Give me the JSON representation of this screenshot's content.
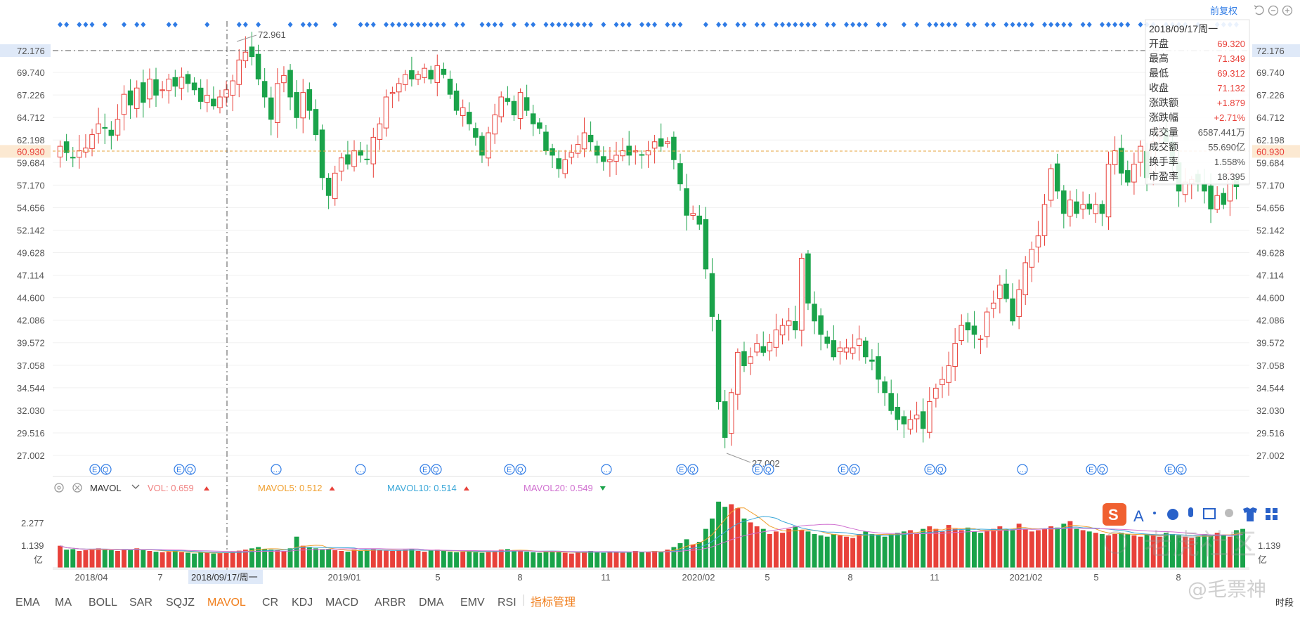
{
  "toolbar": {
    "fq_label": "前复权"
  },
  "colors": {
    "up": "#e8413a",
    "down": "#1aa34a",
    "grid": "#eeeeee",
    "accent": "#2f7be5",
    "price_line": "#e5a33d"
  },
  "icons": [
    "undo-icon",
    "zoom-out-icon",
    "zoom-in-icon",
    "settings-icon",
    "close-icon",
    "chevron-down-icon"
  ],
  "price_axis": {
    "ticks": [
      "72.176",
      "69.740",
      "67.226",
      "64.712",
      "62.198",
      "59.684",
      "57.170",
      "54.656",
      "52.142",
      "49.628",
      "47.114",
      "44.600",
      "42.086",
      "39.572",
      "37.058",
      "34.544",
      "32.030",
      "29.516",
      "27.002"
    ],
    "highlight_top": "72.176",
    "highlight_current": "60.930"
  },
  "annotations": {
    "high_label": "72.961",
    "low_label": "27.002"
  },
  "tooltip": {
    "date": "2018/09/17周一",
    "rows": [
      {
        "k": "开盘",
        "v": "69.320",
        "color": "#e8413a"
      },
      {
        "k": "最高",
        "v": "71.349",
        "color": "#e8413a"
      },
      {
        "k": "最低",
        "v": "69.312",
        "color": "#e8413a"
      },
      {
        "k": "收盘",
        "v": "71.132",
        "color": "#e8413a"
      },
      {
        "k": "涨跌额",
        "v": "+1.879",
        "color": "#e8413a"
      },
      {
        "k": "涨跌幅",
        "v": "+2.71%",
        "color": "#e8413a"
      },
      {
        "k": "成交量",
        "v": "6587.441万",
        "color": "#555555"
      },
      {
        "k": "成交额",
        "v": "55.690亿",
        "color": "#555555"
      },
      {
        "k": "换手率",
        "v": "1.558%",
        "color": "#555555"
      },
      {
        "k": "市盈率",
        "v": "18.395",
        "color": "#555555"
      }
    ]
  },
  "volume_panel": {
    "indicator_name": "MAVOL",
    "legend": [
      {
        "label": "VOL: 0.659",
        "color": "#f08080",
        "dir": "up"
      },
      {
        "label": "MAVOL5: 0.512",
        "color": "#f0a030",
        "dir": "up"
      },
      {
        "label": "MAVOL10: 0.514",
        "color": "#3aa7d8",
        "dir": "up"
      },
      {
        "label": "MAVOL20: 0.549",
        "color": "#d070d0",
        "dir": "down"
      }
    ],
    "axis": [
      "2.277",
      "1.139",
      "亿"
    ],
    "right_axis": [
      "1.139",
      "亿"
    ]
  },
  "x_axis": {
    "labels": [
      "2018/04",
      "7",
      "2018/09/17/周一",
      "2019/01",
      "5",
      "8",
      "11",
      "2020/02",
      "5",
      "8",
      "11",
      "2021/02",
      "5",
      "8"
    ]
  },
  "indicator_tabs": [
    "EMA",
    "MA",
    "BOLL",
    "SAR",
    "SQJZ",
    "MAVOL",
    "CR",
    "KDJ",
    "MACD",
    "ARBR",
    "DMA",
    "EMV",
    "RSI",
    "指标管理"
  ],
  "active_tab": "MAVOL",
  "bottom_right_label": "时段",
  "watermark": {
    "text": "老虎社区",
    "author": "@毛票神"
  },
  "event_markers": {
    "types": [
      "E",
      "Q",
      "…"
    ],
    "positions_data": [
      "2018/05",
      "2018/08",
      "2018/11",
      "2019/02",
      "2019/05",
      "2019/08",
      "2019/11",
      "2020/02",
      "2020/05",
      "2020/08",
      "2020/11",
      "2021/02",
      "2021/05",
      "2021/08"
    ]
  },
  "chart_data": {
    "type": "candlestick",
    "title": "",
    "xlabel": "",
    "ylabel": "",
    "ylim": [
      27.002,
      72.961
    ],
    "y_ticks": [
      72.176,
      69.74,
      67.226,
      64.712,
      62.198,
      59.684,
      57.17,
      54.656,
      52.142,
      49.628,
      47.114,
      44.6,
      42.086,
      39.572,
      37.058,
      34.544,
      32.03,
      29.516,
      27.002
    ],
    "current_price": 60.93,
    "period_high": 72.961,
    "period_low": 27.002,
    "selected": {
      "date": "2018/09/17",
      "open": 69.32,
      "high": 71.349,
      "low": 69.312,
      "close": 71.132
    },
    "closes": [
      61.5,
      60.8,
      60.2,
      61.0,
      61.3,
      62.8,
      64.0,
      63.5,
      62.7,
      64.5,
      67.3,
      66.1,
      68.0,
      66.4,
      69.0,
      67.2,
      67.8,
      69.0,
      68.2,
      69.2,
      68.5,
      67.8,
      66.5,
      67.2,
      66.0,
      67.0,
      67.8,
      68.8,
      71.13,
      72.0,
      71.5,
      69.0,
      67.0,
      64.5,
      68.5,
      69.4,
      67.0,
      64.7,
      67.5,
      65.5,
      62.8,
      58.0,
      56.0,
      58.5,
      60.2,
      59.5,
      61.0,
      60.5,
      60.0,
      62.5,
      64.0,
      67.0,
      67.5,
      68.5,
      69.5,
      69.0,
      69.5,
      70.2,
      69.0,
      70.5,
      69.5,
      67.3,
      65.5,
      65.8,
      64.0,
      62.5,
      60.5,
      63.0,
      65.0,
      67.0,
      66.5,
      65.0,
      67.5,
      65.5,
      64.0,
      63.5,
      61.0,
      60.5,
      59.0,
      60.0,
      60.8,
      61.7,
      63.0,
      62.0,
      60.5,
      59.8,
      60.0,
      60.5,
      61.0,
      60.5,
      61.0,
      60.5,
      61.0,
      62.0,
      61.5,
      62.0,
      60.0,
      57.3,
      53.8,
      54.0,
      52.8,
      47.8,
      42.5,
      33.0,
      29.0,
      34.0,
      38.5,
      37.0,
      38.0,
      39.5,
      38.5,
      39.6,
      41.0,
      41.5,
      42.0,
      41.0,
      49.0,
      44.0,
      42.0,
      40.5,
      39.5,
      38.0,
      39.0,
      39.0,
      39.0,
      40.0,
      38.0,
      37.5,
      35.5,
      34.0,
      32.0,
      31.0,
      30.5,
      31.0,
      31.5,
      30.0,
      33.0,
      34.5,
      35.5,
      37.0,
      39.5,
      41.5,
      41.0,
      40.5,
      40.0,
      43.0,
      44.0,
      46.0,
      44.5,
      42.0,
      45.5,
      48.5,
      50.0,
      51.5,
      55.0,
      59.0,
      56.5,
      54.0,
      55.5,
      54.0,
      55.0,
      54.5,
      55.0,
      54.0,
      59.5,
      61.0,
      58.5,
      57.5,
      59.5,
      61.5,
      58.0,
      62.0,
      63.0,
      62.0,
      59.5,
      56.5,
      57.5,
      57.8,
      57.5,
      56.5,
      54.5,
      56.0,
      55.0,
      58.5,
      57.0
    ],
    "volume_series": {
      "name": "VOL",
      "unit": "亿",
      "ylim": [
        0,
        2.6
      ],
      "values": [
        0.85,
        0.7,
        0.72,
        0.65,
        0.68,
        0.72,
        0.75,
        0.7,
        0.68,
        0.65,
        0.72,
        0.7,
        0.75,
        0.68,
        0.65,
        0.62,
        0.6,
        0.62,
        0.65,
        0.6,
        0.58,
        0.55,
        0.6,
        0.58,
        0.55,
        0.58,
        0.6,
        0.62,
        0.66,
        0.7,
        0.75,
        0.8,
        0.72,
        0.7,
        0.68,
        0.65,
        0.75,
        1.2,
        0.85,
        0.8,
        0.75,
        0.7,
        0.72,
        0.68,
        0.65,
        0.62,
        0.7,
        0.65,
        0.7,
        0.72,
        0.68,
        0.66,
        0.65,
        0.68,
        0.7,
        0.72,
        0.65,
        0.62,
        0.68,
        0.7,
        0.65,
        0.62,
        0.6,
        0.62,
        0.65,
        0.6,
        0.58,
        0.62,
        0.65,
        0.7,
        0.72,
        0.68,
        0.65,
        0.62,
        0.6,
        0.58,
        0.62,
        0.65,
        0.6,
        0.58,
        0.55,
        0.6,
        0.62,
        0.65,
        0.6,
        0.58,
        0.62,
        0.6,
        0.58,
        0.62,
        0.65,
        0.6,
        0.62,
        0.65,
        0.6,
        0.7,
        0.8,
        0.95,
        1.1,
        0.9,
        1.0,
        1.5,
        1.9,
        2.55,
        2.35,
        2.45,
        2.3,
        1.9,
        1.75,
        1.6,
        1.5,
        1.3,
        1.4,
        1.35,
        1.5,
        1.6,
        1.45,
        1.4,
        1.3,
        1.25,
        1.2,
        1.3,
        1.25,
        1.2,
        1.15,
        1.3,
        1.4,
        1.3,
        1.25,
        1.2,
        1.3,
        1.35,
        1.4,
        1.45,
        1.3,
        1.5,
        1.6,
        1.5,
        1.4,
        1.65,
        1.5,
        1.45,
        1.55,
        1.4,
        1.35,
        1.45,
        1.5,
        1.6,
        1.5,
        1.45,
        1.7,
        1.5,
        1.4,
        1.45,
        1.5,
        1.6,
        1.55,
        1.7,
        1.8,
        1.5,
        1.45,
        1.4,
        1.35,
        1.3,
        1.25,
        1.3,
        1.35,
        1.3,
        1.25,
        1.2,
        1.3,
        1.25,
        1.2,
        1.35,
        1.3,
        1.25,
        1.2,
        1.15,
        1.2,
        1.3,
        1.25,
        1.35,
        1.25,
        1.2,
        1.45,
        1.5
      ]
    }
  }
}
